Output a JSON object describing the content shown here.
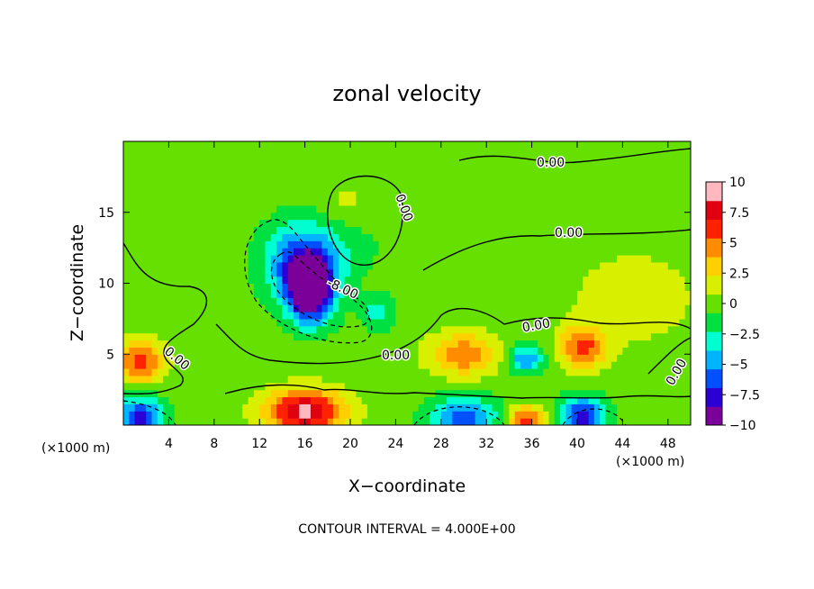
{
  "chart_data": {
    "type": "heatmap",
    "title": "zonal velocity",
    "xlabel": "X−coordinate",
    "ylabel": "Z−coordinate",
    "x_unit_label": "(×1000 m)",
    "x_unit_label_right": "(×1000 m)",
    "footnote": "CONTOUR INTERVAL = 4.000E+00",
    "xlim": [
      0,
      50
    ],
    "ylim": [
      0,
      20
    ],
    "x_ticks": [
      "4",
      "8",
      "12",
      "16",
      "20",
      "24",
      "28",
      "32",
      "36",
      "40",
      "44",
      "48"
    ],
    "y_ticks": [
      "5",
      "10",
      "15"
    ],
    "colorbar": {
      "range": [
        -10,
        10
      ],
      "ticks": [
        "10",
        "7.5",
        "5",
        "2.5",
        "0",
        "−2.5",
        "−5",
        "−7.5",
        "−10"
      ],
      "colors": [
        "#7a0099",
        "#2a00d5",
        "#0050ff",
        "#00b4ff",
        "#00ffd0",
        "#00e040",
        "#66e000",
        "#d8f000",
        "#ffd000",
        "#ff8c00",
        "#ff2200",
        "#e00010",
        "#ffb8c0"
      ]
    },
    "contour_interval": 4.0,
    "contour_labels": [
      "0.00",
      "0.00",
      "0.00",
      "-8.00",
      "0.00",
      "0.00",
      "0.00",
      "0.00"
    ],
    "features": [
      {
        "x": 16.5,
        "z": 9.5,
        "value": -11.5,
        "sx": 2.0,
        "sz": 2.2
      },
      {
        "x": 15.5,
        "z": 11.5,
        "value": -6.0,
        "sx": 3.2,
        "sz": 2.6
      },
      {
        "x": 19.0,
        "z": 14.0,
        "value": -2.0,
        "sx": 4.0,
        "sz": 3.5
      },
      {
        "x": 19.5,
        "z": 15.5,
        "value": 2.5,
        "sx": 3.0,
        "sz": 2.0
      },
      {
        "x": 16.0,
        "z": 1.0,
        "value": 9.0,
        "sx": 3.5,
        "sz": 1.5
      },
      {
        "x": 40.5,
        "z": 5.5,
        "value": 6.0,
        "sx": 2.0,
        "sz": 1.5
      },
      {
        "x": 1.5,
        "z": 4.5,
        "value": 6.0,
        "sx": 2.0,
        "sz": 1.5
      },
      {
        "x": 30.0,
        "z": 5.0,
        "value": 5.0,
        "sx": 3.0,
        "sz": 1.5
      },
      {
        "x": 35.5,
        "z": 4.7,
        "value": -5.5,
        "sx": 1.5,
        "sz": 1.0
      },
      {
        "x": 1.5,
        "z": 0.5,
        "value": -8.0,
        "sx": 2.0,
        "sz": 1.5
      },
      {
        "x": 30.0,
        "z": 0.5,
        "value": -6.0,
        "sx": 3.0,
        "sz": 1.5
      },
      {
        "x": 40.5,
        "z": 0.5,
        "value": -8.0,
        "sx": 2.0,
        "sz": 1.5
      },
      {
        "x": 35.5,
        "z": 0.3,
        "value": 7.0,
        "sx": 1.5,
        "sz": 1.0
      },
      {
        "x": 22.5,
        "z": 8.0,
        "value": -3.0,
        "sx": 1.5,
        "sz": 1.2
      },
      {
        "x": 45.0,
        "z": 9.0,
        "value": 2.0,
        "sx": 5.0,
        "sz": 3.0
      }
    ]
  }
}
